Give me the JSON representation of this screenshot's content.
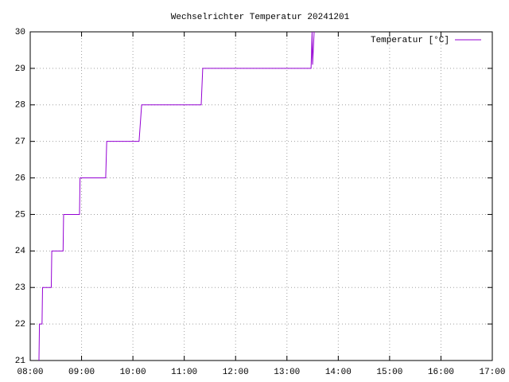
{
  "chart_data": {
    "type": "line",
    "title": "Wechselrichter Temperatur 20241201",
    "series": [
      {
        "name": "Temperatur [°C]",
        "color": "#9400d3",
        "x": [
          8.17,
          8.18,
          8.23,
          8.24,
          8.41,
          8.42,
          8.64,
          8.65,
          8.96,
          8.97,
          9.47,
          9.49,
          10.12,
          10.17,
          11.33,
          11.36,
          13.47,
          13.49,
          13.5,
          13.53
        ],
        "values": [
          21,
          22,
          22,
          23,
          23,
          24,
          24,
          25,
          25,
          26,
          26,
          27,
          27,
          28,
          28,
          29,
          29,
          30,
          29.1,
          30
        ]
      }
    ],
    "xlim": [
      8,
      17
    ],
    "xticks": [
      {
        "value": 8,
        "label": "08:00"
      },
      {
        "value": 9,
        "label": "09:00"
      },
      {
        "value": 10,
        "label": "10:00"
      },
      {
        "value": 11,
        "label": "11:00"
      },
      {
        "value": 12,
        "label": "12:00"
      },
      {
        "value": 13,
        "label": "13:00"
      },
      {
        "value": 14,
        "label": "14:00"
      },
      {
        "value": 15,
        "label": "15:00"
      },
      {
        "value": 16,
        "label": "16:00"
      },
      {
        "value": 17,
        "label": "17:00"
      }
    ],
    "ylim": [
      21,
      30
    ],
    "yticks": [
      21,
      22,
      23,
      24,
      25,
      26,
      27,
      28,
      29,
      30
    ],
    "grid": true,
    "legend": "top-right"
  }
}
